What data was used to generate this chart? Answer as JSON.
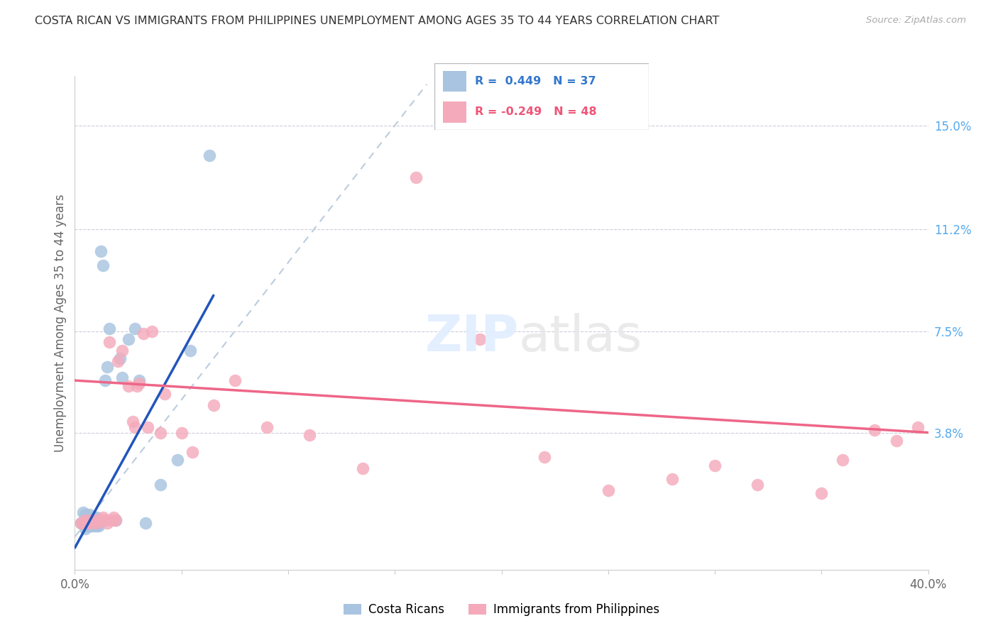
{
  "title": "COSTA RICAN VS IMMIGRANTS FROM PHILIPPINES UNEMPLOYMENT AMONG AGES 35 TO 44 YEARS CORRELATION CHART",
  "source": "Source: ZipAtlas.com",
  "ylabel_label": "Unemployment Among Ages 35 to 44 years",
  "legend_label1": "Costa Ricans",
  "legend_label2": "Immigrants from Philippines",
  "xlim": [
    0.0,
    0.4
  ],
  "ylim": [
    -0.012,
    0.168
  ],
  "ytick_values": [
    0.038,
    0.075,
    0.112,
    0.15
  ],
  "ytick_labels": [
    "3.8%",
    "7.5%",
    "11.2%",
    "15.0%"
  ],
  "xtick_values": [
    0.0,
    0.05,
    0.1,
    0.15,
    0.2,
    0.25,
    0.3,
    0.35,
    0.4
  ],
  "xtick_labels": [
    "0.0%",
    "",
    "",
    "",
    "",
    "",
    "",
    "",
    "40.0%"
  ],
  "color_blue": "#A8C4E0",
  "color_pink": "#F4AABB",
  "color_blue_line": "#2255BB",
  "color_pink_line": "#EE6688",
  "color_dashed": "#BBCCDD",
  "legend_r1_text": "R =  0.449   N = 37",
  "legend_r2_text": "R = -0.249   N = 48",
  "blue_line_x0": 0.0,
  "blue_line_y0": -0.004,
  "blue_line_x1": 0.065,
  "blue_line_y1": 0.088,
  "pink_line_x0": 0.0,
  "pink_line_y0": 0.057,
  "pink_line_x1": 0.4,
  "pink_line_y1": 0.038,
  "blue_x": [
    0.003,
    0.004,
    0.004,
    0.005,
    0.005,
    0.005,
    0.005,
    0.006,
    0.006,
    0.007,
    0.007,
    0.008,
    0.008,
    0.009,
    0.009,
    0.009,
    0.01,
    0.01,
    0.01,
    0.011,
    0.011,
    0.012,
    0.013,
    0.014,
    0.015,
    0.016,
    0.019,
    0.021,
    0.022,
    0.025,
    0.028,
    0.03,
    0.033,
    0.04,
    0.048,
    0.054,
    0.063
  ],
  "blue_y": [
    0.005,
    0.005,
    0.009,
    0.003,
    0.004,
    0.006,
    0.008,
    0.004,
    0.006,
    0.004,
    0.008,
    0.004,
    0.006,
    0.004,
    0.005,
    0.007,
    0.004,
    0.005,
    0.007,
    0.004,
    0.006,
    0.104,
    0.099,
    0.057,
    0.062,
    0.076,
    0.006,
    0.065,
    0.058,
    0.072,
    0.076,
    0.057,
    0.005,
    0.019,
    0.028,
    0.068,
    0.139
  ],
  "pink_x": [
    0.003,
    0.004,
    0.005,
    0.006,
    0.007,
    0.008,
    0.009,
    0.01,
    0.011,
    0.012,
    0.013,
    0.014,
    0.015,
    0.016,
    0.017,
    0.018,
    0.019,
    0.02,
    0.022,
    0.025,
    0.027,
    0.028,
    0.029,
    0.03,
    0.032,
    0.034,
    0.036,
    0.04,
    0.042,
    0.05,
    0.055,
    0.065,
    0.075,
    0.09,
    0.11,
    0.135,
    0.16,
    0.19,
    0.22,
    0.25,
    0.28,
    0.3,
    0.32,
    0.35,
    0.36,
    0.375,
    0.385,
    0.395
  ],
  "pink_y": [
    0.005,
    0.005,
    0.006,
    0.005,
    0.006,
    0.005,
    0.006,
    0.005,
    0.006,
    0.006,
    0.007,
    0.006,
    0.005,
    0.071,
    0.006,
    0.007,
    0.006,
    0.064,
    0.068,
    0.055,
    0.042,
    0.04,
    0.055,
    0.056,
    0.074,
    0.04,
    0.075,
    0.038,
    0.052,
    0.038,
    0.031,
    0.048,
    0.057,
    0.04,
    0.037,
    0.025,
    0.131,
    0.072,
    0.029,
    0.017,
    0.021,
    0.026,
    0.019,
    0.016,
    0.028,
    0.039,
    0.035,
    0.04
  ]
}
